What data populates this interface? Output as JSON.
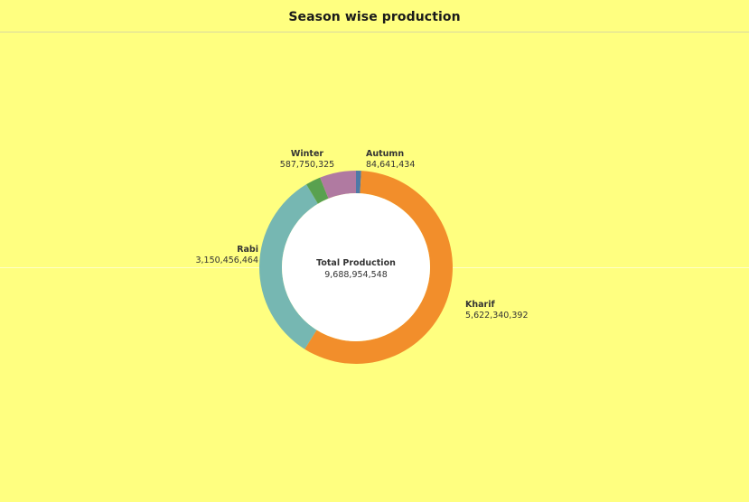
{
  "header": {
    "title": "Season wise production"
  },
  "chart_data": {
    "type": "pie",
    "variant": "donut",
    "title": "Season wise production",
    "center_label": "Total Production",
    "center_value": "9,688,954,548",
    "total": 9688954548,
    "categories": [
      "Autumn",
      "Kharif",
      "Rabi",
      "Winter"
    ],
    "values": [
      84641434,
      5622340392,
      3150456464,
      587750325
    ],
    "value_labels": [
      "84,641,434",
      "5,622,340,392",
      "3,150,456,464",
      "587,750,325"
    ],
    "segments": [
      {
        "name": "Autumn",
        "value": 84641434,
        "value_label": "84,641,434",
        "color": "#4e79a7"
      },
      {
        "name": "Kharif",
        "value": 5622340392,
        "value_label": "5,622,340,392",
        "color": "#f28e2b"
      },
      {
        "name": "Rabi",
        "value": 3150456464,
        "value_label": "3,150,456,464",
        "color": "#76b7b2"
      },
      {
        "name": "Unlabeled",
        "value": 243766000,
        "value_label": "",
        "color": "#59a14f"
      },
      {
        "name": "Winter",
        "value": 587750325,
        "value_label": "587,750,325",
        "color": "#b07aa1"
      }
    ],
    "legend": "none",
    "background_color": "#ffff80"
  }
}
